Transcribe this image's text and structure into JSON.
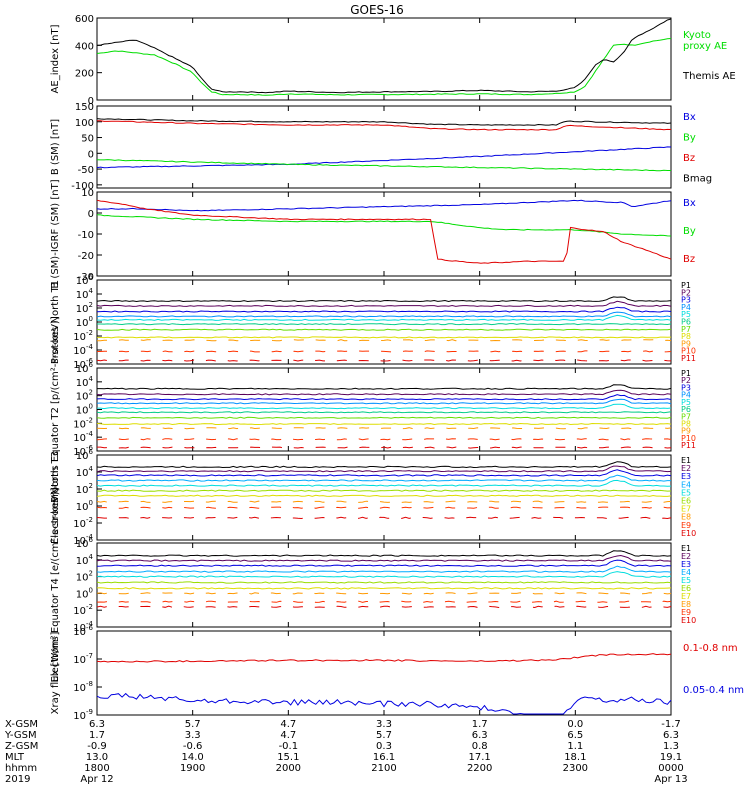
{
  "title": "GOES-16",
  "colors": {
    "black": "#000000",
    "blue": "#0000e0",
    "green": "#00dd00",
    "red": "#e00000"
  },
  "x_axis": {
    "range_hours": [
      18.0,
      24.0
    ],
    "tick_hours": [
      18,
      19,
      20,
      21,
      22,
      23,
      24
    ],
    "rows": [
      {
        "label": "X-GSM",
        "values": [
          "6.3",
          "5.7",
          "4.7",
          "3.3",
          "1.7",
          "0.0",
          "-1.7"
        ]
      },
      {
        "label": "Y-GSM",
        "values": [
          "1.7",
          "3.3",
          "4.7",
          "5.7",
          "6.3",
          "6.5",
          "6.3"
        ]
      },
      {
        "label": "Z-GSM",
        "values": [
          "-0.9",
          "-0.6",
          "-0.1",
          "0.3",
          "0.8",
          "1.1",
          "1.3"
        ]
      },
      {
        "label": "MLT",
        "values": [
          "13.0",
          "14.0",
          "15.1",
          "16.1",
          "17.1",
          "18.1",
          "19.1"
        ]
      },
      {
        "label": "hhmm",
        "values": [
          "1800",
          "1900",
          "2000",
          "2100",
          "2200",
          "2300",
          "0000"
        ]
      },
      {
        "label": "2019",
        "values": [
          "Apr 12",
          "",
          "",
          "",
          "",
          "",
          "Apr 13"
        ]
      }
    ]
  },
  "chart_data": [
    {
      "type": "line",
      "id": "ae",
      "ylabel": "AE_index [nT]",
      "ylim": [
        0,
        600
      ],
      "yticks": [
        "0",
        "200",
        "400",
        "600"
      ],
      "legend": [
        {
          "text": "Kyoto",
          "color": "#00dd00"
        },
        {
          "text": "proxy AE",
          "color": "#00dd00"
        },
        {
          "text": "Themis AE",
          "color": "#000000"
        }
      ],
      "series": [
        {
          "name": "Kyoto proxy AE",
          "color": "#00dd00",
          "x": [
            18.0,
            18.2,
            18.4,
            18.6,
            18.8,
            19.0,
            19.1,
            19.2,
            19.3,
            19.5,
            19.8,
            20.0,
            20.5,
            21.0,
            21.5,
            22.0,
            22.5,
            22.8,
            23.0,
            23.1,
            23.2,
            23.3,
            23.4,
            23.5,
            23.6,
            23.8,
            24.0
          ],
          "y": [
            340,
            360,
            345,
            330,
            270,
            200,
            120,
            60,
            40,
            40,
            35,
            45,
            38,
            40,
            42,
            45,
            40,
            48,
            60,
            100,
            200,
            300,
            400,
            410,
            400,
            430,
            450
          ]
        },
        {
          "name": "Themis AE",
          "color": "#000000",
          "x": [
            18.0,
            18.2,
            18.4,
            18.6,
            18.8,
            19.0,
            19.1,
            19.2,
            19.3,
            19.5,
            19.8,
            20.0,
            20.5,
            21.0,
            21.5,
            22.0,
            22.5,
            22.8,
            23.0,
            23.1,
            23.2,
            23.3,
            23.4,
            23.5,
            23.6,
            23.8,
            24.0
          ],
          "y": [
            400,
            420,
            440,
            380,
            310,
            240,
            150,
            80,
            60,
            60,
            55,
            65,
            55,
            60,
            62,
            70,
            60,
            65,
            90,
            150,
            250,
            300,
            280,
            340,
            450,
            520,
            600
          ]
        }
      ]
    },
    {
      "type": "line",
      "id": "bsm",
      "ylabel": "B (SM) [nT]",
      "ylim": [
        -110,
        150
      ],
      "yticks": [
        "150",
        "100",
        "50",
        "0",
        "-50",
        "-100"
      ],
      "ytickvals": [
        150,
        100,
        50,
        0,
        -50,
        -100
      ],
      "legend": [
        {
          "text": "Bx",
          "color": "#0000e0"
        },
        {
          "text": "By",
          "color": "#00dd00"
        },
        {
          "text": "Bz",
          "color": "#e00000"
        },
        {
          "text": "Bmag",
          "color": "#000000"
        }
      ],
      "series": [
        {
          "name": "Bmag",
          "color": "#000000",
          "x": [
            18,
            19,
            20,
            21,
            21.5,
            22,
            22.8,
            22.9,
            24
          ],
          "y": [
            110,
            103,
            100,
            100,
            92,
            90,
            90,
            102,
            95
          ]
        },
        {
          "name": "Bz",
          "color": "#e00000",
          "x": [
            18,
            19,
            20,
            21,
            21.5,
            22,
            22.8,
            22.9,
            24
          ],
          "y": [
            103,
            95,
            90,
            90,
            78,
            75,
            75,
            88,
            75
          ]
        },
        {
          "name": "Bx",
          "color": "#0000e0",
          "x": [
            18,
            20,
            22,
            24
          ],
          "y": [
            -45,
            -35,
            -10,
            20
          ]
        },
        {
          "name": "By",
          "color": "#00dd00",
          "x": [
            18,
            20,
            22,
            24
          ],
          "y": [
            -20,
            -35,
            -45,
            -55
          ]
        }
      ]
    },
    {
      "type": "line",
      "id": "bigrf",
      "ylabel": "B (SM)-IGRF (SM) [nT]",
      "ylim": [
        -30,
        10
      ],
      "yticks": [
        "10",
        "0",
        "-10",
        "-20",
        "-30"
      ],
      "ytickvals": [
        10,
        0,
        -10,
        -20,
        -30
      ],
      "legend": [
        {
          "text": "Bx",
          "color": "#0000e0"
        },
        {
          "text": "By",
          "color": "#00dd00"
        },
        {
          "text": "Bz",
          "color": "#e00000"
        }
      ],
      "series": [
        {
          "name": "Bx",
          "color": "#0000e0",
          "x": [
            18,
            18.5,
            19,
            20,
            21,
            22,
            23,
            23.5,
            23.6,
            24
          ],
          "y": [
            2,
            2,
            1,
            2,
            3,
            4,
            6,
            5,
            3,
            6
          ]
        },
        {
          "name": "By",
          "color": "#00dd00",
          "x": [
            18,
            18.5,
            19,
            20,
            21,
            21.5,
            22,
            22.3,
            23,
            23.5,
            24
          ],
          "y": [
            -1,
            -2,
            -3,
            -4,
            -4,
            -4,
            -7,
            -8,
            -8,
            -10,
            -11
          ]
        },
        {
          "name": "Bz",
          "color": "#e00000",
          "x": [
            18,
            18.3,
            18.5,
            19,
            20,
            21,
            21.5,
            21.55,
            22,
            22.5,
            22.9,
            22.95,
            23.3,
            23.5,
            23.7,
            24
          ],
          "y": [
            6,
            4,
            2,
            -1,
            -3,
            -3,
            -3,
            -22,
            -24,
            -23,
            -23,
            -7,
            -9,
            -14,
            -17,
            -22
          ]
        }
      ]
    },
    {
      "type": "line",
      "id": "p_north",
      "ylabel": "Protons North T1",
      "log": true,
      "ylim_exp": [
        -6,
        6
      ],
      "yticks_exp": [
        6,
        4,
        2,
        0,
        -2,
        -4,
        -6
      ],
      "legend": [
        {
          "text": "P1",
          "color": "#000000"
        },
        {
          "text": "P2",
          "color": "#5a005a"
        },
        {
          "text": "P3",
          "color": "#0000e0"
        },
        {
          "text": "P4",
          "color": "#0090ff"
        },
        {
          "text": "P5",
          "color": "#00dddd"
        },
        {
          "text": "P6",
          "color": "#00cc88"
        },
        {
          "text": "P7",
          "color": "#66dd00"
        },
        {
          "text": "P8",
          "color": "#dddd00"
        },
        {
          "text": "P9",
          "color": "#ff9900"
        },
        {
          "text": "P10",
          "color": "#ff3300"
        },
        {
          "text": "P11",
          "color": "#e00000"
        }
      ],
      "series_levels_exp": [
        3,
        2.3,
        1.5,
        0.8,
        0.3,
        -0.3,
        -1.1,
        -2.2,
        -2.6,
        -4.2,
        -5.5
      ]
    },
    {
      "type": "line",
      "id": "p_equator",
      "ylabel": "Protons Equator T2 [p/(cm²-s-sr-keV)]",
      "log": true,
      "ylim_exp": [
        -6,
        6
      ],
      "yticks_exp": [
        6,
        4,
        2,
        0,
        -2,
        -4,
        -6
      ],
      "legend": [
        {
          "text": "P1",
          "color": "#000000"
        },
        {
          "text": "P2",
          "color": "#5a005a"
        },
        {
          "text": "P3",
          "color": "#0000e0"
        },
        {
          "text": "P4",
          "color": "#0090ff"
        },
        {
          "text": "P5",
          "color": "#00dddd"
        },
        {
          "text": "P6",
          "color": "#00cc88"
        },
        {
          "text": "P7",
          "color": "#66dd00"
        },
        {
          "text": "P8",
          "color": "#dddd00"
        },
        {
          "text": "P9",
          "color": "#ff9900"
        },
        {
          "text": "P10",
          "color": "#ff3300"
        },
        {
          "text": "P11",
          "color": "#e00000"
        }
      ],
      "series_levels_exp": [
        3,
        2.2,
        1.5,
        0.9,
        0.2,
        -0.4,
        -1.2,
        -2.1,
        -2.7,
        -4.3,
        -5.5
      ]
    },
    {
      "type": "line",
      "id": "e_north",
      "ylabel": "Electrons North T3",
      "log": true,
      "ylim_exp": [
        -4,
        6
      ],
      "yticks_exp": [
        6,
        4,
        2,
        0,
        -2,
        -4
      ],
      "legend": [
        {
          "text": "E1",
          "color": "#000000"
        },
        {
          "text": "E2",
          "color": "#5a005a"
        },
        {
          "text": "E3",
          "color": "#0000e0"
        },
        {
          "text": "E4",
          "color": "#00aaff"
        },
        {
          "text": "E5",
          "color": "#00dddd"
        },
        {
          "text": "E6",
          "color": "#99dd00"
        },
        {
          "text": "E7",
          "color": "#dddd00"
        },
        {
          "text": "E8",
          "color": "#ff9900"
        },
        {
          "text": "E9",
          "color": "#ff3300"
        },
        {
          "text": "E10",
          "color": "#e00000"
        }
      ],
      "series_levels_exp": [
        4.6,
        4.1,
        3.6,
        3.0,
        2.4,
        1.8,
        1.2,
        0.5,
        -0.2,
        -1.4
      ]
    },
    {
      "type": "line",
      "id": "e_equator",
      "ylabel": "Electrons Equator T4 [e/(cm²-s-sr-keV)]",
      "log": true,
      "ylim_exp": [
        -4,
        6
      ],
      "yticks_exp": [
        6,
        4,
        2,
        0,
        -2,
        -4
      ],
      "legend": [
        {
          "text": "E1",
          "color": "#000000"
        },
        {
          "text": "E2",
          "color": "#5a005a"
        },
        {
          "text": "E3",
          "color": "#0000e0"
        },
        {
          "text": "E4",
          "color": "#00aaff"
        },
        {
          "text": "E5",
          "color": "#00dddd"
        },
        {
          "text": "E6",
          "color": "#99dd00"
        },
        {
          "text": "E7",
          "color": "#dddd00"
        },
        {
          "text": "E8",
          "color": "#ff9900"
        },
        {
          "text": "E9",
          "color": "#ff3300"
        },
        {
          "text": "E10",
          "color": "#e00000"
        }
      ],
      "series_levels_exp": [
        4.5,
        3.9,
        3.3,
        2.6,
        2.0,
        1.3,
        0.6,
        0.0,
        -1.0,
        -1.6
      ]
    },
    {
      "type": "line",
      "id": "xray",
      "ylabel": "Xray flux [W/m²]",
      "log": true,
      "ylim_exp": [
        -9,
        -6
      ],
      "yticks_exp": [
        -6,
        -7,
        -8,
        -9
      ],
      "legend": [
        {
          "text": "0.1-0.8 nm",
          "color": "#e00000"
        },
        {
          "text": "0.05-0.4 nm",
          "color": "#0000e0"
        }
      ],
      "series": [
        {
          "name": "0.1-0.8 nm",
          "color": "#e00000",
          "x": [
            18,
            19,
            20,
            21,
            22,
            22.5,
            22.8,
            23,
            23.3,
            24
          ],
          "y_exp": [
            -7.1,
            -7.08,
            -7.05,
            -7.05,
            -7.08,
            -7.05,
            -7.03,
            -6.95,
            -6.85,
            -6.82
          ]
        },
        {
          "name": "0.05-0.4 nm",
          "color": "#0000e0",
          "x": [
            18,
            18.5,
            19,
            19.5,
            20,
            20.5,
            21,
            21.5,
            22,
            22.3,
            22.5,
            22.7,
            22.9,
            23.1,
            23.3,
            23.6,
            24
          ],
          "y_exp": [
            -8.3,
            -8.35,
            -8.5,
            -8.5,
            -8.55,
            -8.55,
            -8.6,
            -8.6,
            -8.75,
            -8.8,
            -9.1,
            -9.2,
            -8.9,
            -8.35,
            -8.5,
            -8.45,
            -8.55
          ]
        }
      ]
    }
  ]
}
